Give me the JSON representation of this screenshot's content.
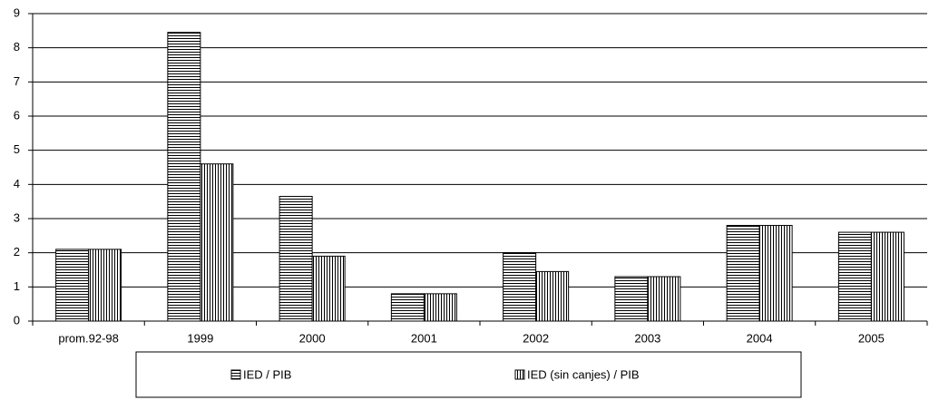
{
  "chart_data": {
    "type": "bar",
    "categories": [
      "prom.92-98",
      "1999",
      "2000",
      "2001",
      "2002",
      "2003",
      "2004",
      "2005"
    ],
    "series": [
      {
        "name": "IED / PIB",
        "color": "#000000",
        "pattern": "horizontal",
        "values": [
          2.1,
          8.45,
          3.65,
          0.8,
          2.0,
          1.3,
          2.8,
          2.6
        ]
      },
      {
        "name": "IED (sin canjes) / PIB",
        "color": "#000000",
        "pattern": "vertical",
        "values": [
          2.1,
          4.6,
          1.9,
          0.8,
          1.45,
          1.3,
          2.8,
          2.6
        ]
      }
    ],
    "ylim": [
      0,
      9
    ],
    "yticks": [
      0,
      1,
      2,
      3,
      4,
      5,
      6,
      7,
      8,
      9
    ],
    "grid": true,
    "legend": "bottom"
  }
}
